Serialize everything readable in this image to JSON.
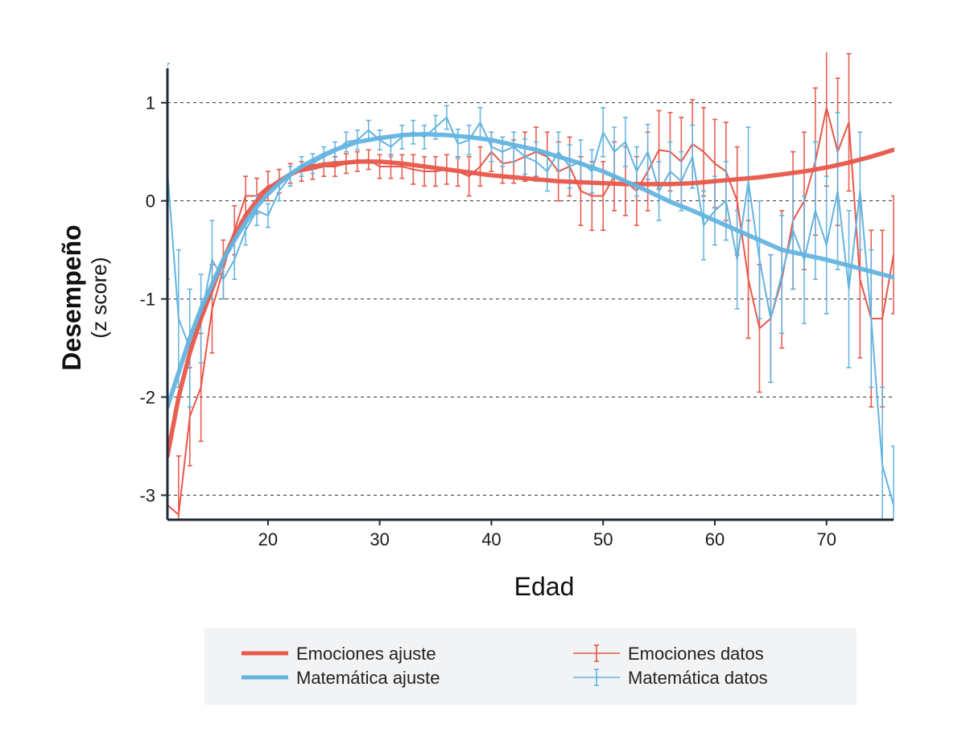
{
  "chart_data": {
    "type": "line",
    "xlabel": "Edad",
    "ylabel": "Desempeño",
    "ylabel_sub": "(z score)",
    "xlim": [
      11,
      76
    ],
    "ylim": [
      -3.25,
      1.35
    ],
    "xticks": [
      20,
      30,
      40,
      50,
      60,
      70
    ],
    "yticks": [
      1,
      0,
      -1,
      -2,
      -3
    ],
    "grid": "horizontal dashed",
    "legend_position": "bottom",
    "colors": {
      "emociones": "#e8574a",
      "matematica": "#63b4e0",
      "overlap": "#5a4a4e"
    },
    "series": [
      {
        "name": "Emociones ajuste",
        "kind": "fit",
        "x": [
          11,
          12,
          13,
          14,
          15,
          16,
          17,
          18,
          19,
          20,
          21,
          22,
          23,
          24,
          25,
          26,
          27,
          28,
          29,
          30,
          32,
          34,
          36,
          38,
          40,
          42,
          44,
          46,
          48,
          50,
          52,
          54,
          56,
          58,
          60,
          62,
          64,
          66,
          68,
          70,
          72,
          74,
          76
        ],
        "values": [
          -2.6,
          -2.0,
          -1.55,
          -1.2,
          -0.9,
          -0.6,
          -0.35,
          -0.15,
          0.0,
          0.12,
          0.2,
          0.27,
          0.32,
          0.35,
          0.37,
          0.38,
          0.39,
          0.4,
          0.4,
          0.4,
          0.38,
          0.35,
          0.32,
          0.29,
          0.26,
          0.24,
          0.22,
          0.2,
          0.19,
          0.18,
          0.17,
          0.17,
          0.17,
          0.18,
          0.2,
          0.22,
          0.24,
          0.27,
          0.3,
          0.34,
          0.39,
          0.45,
          0.52
        ]
      },
      {
        "name": "Matemática ajuste",
        "kind": "fit",
        "x": [
          11,
          12,
          13,
          14,
          15,
          16,
          17,
          18,
          19,
          20,
          21,
          22,
          23,
          24,
          25,
          26,
          27,
          28,
          29,
          30,
          32,
          34,
          36,
          38,
          40,
          42,
          44,
          46,
          48,
          50,
          52,
          54,
          56,
          58,
          60,
          62,
          64,
          66,
          68,
          70,
          72,
          74,
          76
        ],
        "values": [
          -2.1,
          -1.75,
          -1.4,
          -1.1,
          -0.85,
          -0.6,
          -0.4,
          -0.22,
          -0.06,
          0.07,
          0.18,
          0.27,
          0.35,
          0.41,
          0.47,
          0.52,
          0.56,
          0.6,
          0.62,
          0.64,
          0.67,
          0.68,
          0.67,
          0.65,
          0.62,
          0.57,
          0.52,
          0.45,
          0.38,
          0.3,
          0.2,
          0.1,
          -0.01,
          -0.1,
          -0.2,
          -0.3,
          -0.4,
          -0.5,
          -0.55,
          -0.6,
          -0.66,
          -0.72,
          -0.78
        ]
      },
      {
        "name": "Emociones datos",
        "kind": "data",
        "x": [
          11,
          12,
          13,
          14,
          15,
          16,
          17,
          18,
          19,
          20,
          21,
          22,
          23,
          24,
          25,
          26,
          27,
          28,
          29,
          30,
          31,
          32,
          33,
          34,
          35,
          36,
          37,
          38,
          39,
          40,
          41,
          42,
          43,
          44,
          45,
          46,
          47,
          48,
          49,
          50,
          51,
          52,
          53,
          54,
          55,
          56,
          57,
          58,
          59,
          60,
          61,
          62,
          63,
          64,
          65,
          66,
          67,
          68,
          69,
          70,
          71,
          72,
          73,
          74,
          75,
          76
        ],
        "values": [
          -3.1,
          -3.2,
          -2.2,
          -1.9,
          -1.1,
          -0.7,
          -0.3,
          0.05,
          0.05,
          0.15,
          0.2,
          0.28,
          0.3,
          0.32,
          0.35,
          0.35,
          0.38,
          0.4,
          0.42,
          0.35,
          0.35,
          0.35,
          0.32,
          0.3,
          0.3,
          0.32,
          0.3,
          0.25,
          0.35,
          0.5,
          0.38,
          0.4,
          0.45,
          0.5,
          0.45,
          0.3,
          0.35,
          0.1,
          0.05,
          0.05,
          0.25,
          0.2,
          0.1,
          0.3,
          0.52,
          0.5,
          0.4,
          0.58,
          0.5,
          0.38,
          0.3,
          0.0,
          -0.8,
          -1.3,
          -1.2,
          -0.8,
          -0.2,
          0.0,
          0.4,
          0.95,
          0.5,
          0.8,
          -0.8,
          -1.2,
          -1.2,
          -0.55
        ],
        "errors": [
          0.6,
          0.6,
          0.5,
          0.55,
          0.45,
          0.3,
          0.25,
          0.2,
          0.18,
          0.15,
          0.12,
          0.1,
          0.1,
          0.1,
          0.1,
          0.1,
          0.1,
          0.1,
          0.1,
          0.12,
          0.12,
          0.12,
          0.15,
          0.15,
          0.15,
          0.15,
          0.15,
          0.2,
          0.2,
          0.2,
          0.2,
          0.22,
          0.25,
          0.25,
          0.25,
          0.3,
          0.3,
          0.35,
          0.35,
          0.35,
          0.35,
          0.35,
          0.35,
          0.4,
          0.4,
          0.4,
          0.45,
          0.45,
          0.45,
          0.45,
          0.5,
          0.55,
          0.6,
          0.65,
          0.65,
          0.7,
          0.7,
          0.7,
          0.75,
          0.8,
          0.75,
          0.7,
          0.8,
          0.9,
          0.9,
          0.6
        ]
      },
      {
        "name": "Matemática datos",
        "kind": "data",
        "x": [
          11,
          12,
          13,
          14,
          15,
          16,
          17,
          18,
          19,
          20,
          21,
          22,
          23,
          24,
          25,
          26,
          27,
          28,
          29,
          30,
          31,
          32,
          33,
          34,
          35,
          36,
          37,
          38,
          39,
          40,
          41,
          42,
          43,
          44,
          45,
          46,
          47,
          48,
          49,
          50,
          51,
          52,
          53,
          54,
          55,
          56,
          57,
          58,
          59,
          60,
          61,
          62,
          63,
          64,
          65,
          66,
          67,
          68,
          69,
          70,
          71,
          72,
          73,
          74,
          75,
          76
        ],
        "values": [
          0.3,
          -1.2,
          -1.5,
          -1.2,
          -0.6,
          -0.8,
          -0.6,
          -0.3,
          -0.1,
          -0.15,
          0.1,
          0.25,
          0.35,
          0.38,
          0.45,
          0.5,
          0.6,
          0.62,
          0.72,
          0.62,
          0.55,
          0.65,
          0.7,
          0.65,
          0.75,
          0.85,
          0.58,
          0.62,
          0.8,
          0.55,
          0.5,
          0.55,
          0.45,
          0.4,
          0.3,
          0.5,
          0.35,
          0.4,
          0.3,
          0.7,
          0.5,
          0.6,
          0.3,
          0.5,
          0.1,
          0.3,
          0.2,
          0.45,
          -0.25,
          -0.1,
          0.0,
          -0.6,
          0.2,
          -0.6,
          -1.2,
          -0.75,
          -0.3,
          -0.6,
          -0.1,
          -0.45,
          0.1,
          -0.9,
          0.1,
          -1.2,
          -2.7,
          -3.1
        ],
        "errors": [
          1.1,
          0.7,
          0.6,
          0.45,
          0.4,
          0.2,
          0.2,
          0.15,
          0.15,
          0.12,
          0.1,
          0.1,
          0.1,
          0.1,
          0.1,
          0.1,
          0.1,
          0.1,
          0.1,
          0.1,
          0.1,
          0.12,
          0.12,
          0.12,
          0.12,
          0.12,
          0.15,
          0.15,
          0.15,
          0.15,
          0.15,
          0.15,
          0.18,
          0.2,
          0.2,
          0.2,
          0.22,
          0.22,
          0.22,
          0.25,
          0.25,
          0.25,
          0.25,
          0.28,
          0.3,
          0.3,
          0.3,
          0.32,
          0.35,
          0.35,
          0.4,
          0.5,
          0.55,
          0.6,
          0.65,
          0.6,
          0.6,
          0.65,
          0.7,
          0.7,
          0.8,
          0.8,
          0.6,
          0.7,
          0.8,
          0.6
        ]
      }
    ]
  },
  "legend": {
    "items": [
      {
        "label": "Emociones ajuste",
        "style": "fit",
        "color": "#e8574a"
      },
      {
        "label": "Matemática ajuste",
        "style": "fit",
        "color": "#63b4e0"
      },
      {
        "label": "Emociones datos",
        "style": "data",
        "color": "#e8574a"
      },
      {
        "label": "Matemática datos",
        "style": "data",
        "color": "#63b4e0"
      }
    ]
  }
}
